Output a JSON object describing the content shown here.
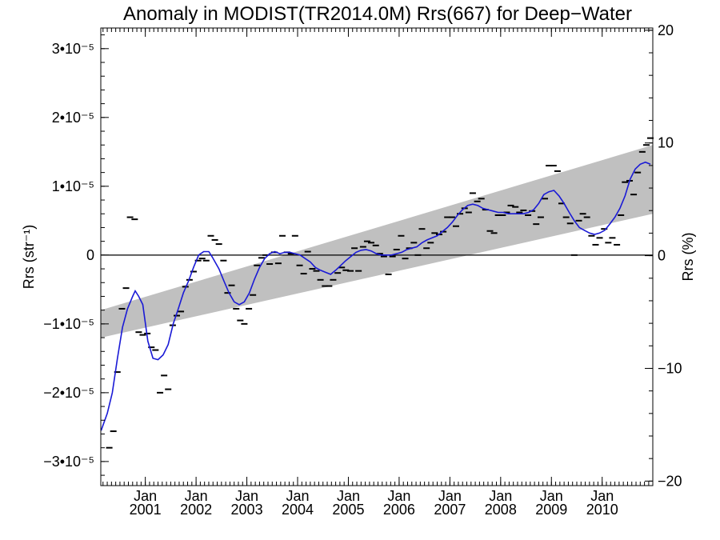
{
  "chart_data": {
    "type": "scatter",
    "title": "Anomaly in MODIST(TR2014.0M) Rrs(667) for Deep−Water",
    "ylabel_left": "Rrs (str⁻¹)",
    "ylabel_right": "Rrs (%)",
    "ylim_left": [
      -3.35e-05,
      3.3e-05
    ],
    "ylim_right": [
      -20.4,
      20.2
    ],
    "y_ticks_left": [
      {
        "value": 3e-05,
        "label": "3•10⁻⁵"
      },
      {
        "value": 2e-05,
        "label": "2•10⁻⁵"
      },
      {
        "value": 1e-05,
        "label": "1•10⁻⁵"
      },
      {
        "value": 0,
        "label": "0"
      },
      {
        "value": -1e-05,
        "label": "−1•10⁻⁵"
      },
      {
        "value": -2e-05,
        "label": "−2•10⁻⁵"
      },
      {
        "value": -3e-05,
        "label": "−3•10⁻⁵"
      }
    ],
    "y_ticks_right": [
      {
        "value": 20,
        "label": "20"
      },
      {
        "value": 10,
        "label": "10"
      },
      {
        "value": 0,
        "label": "0"
      },
      {
        "value": -10,
        "label": "−10"
      },
      {
        "value": -20,
        "label": "−20"
      }
    ],
    "xlim": [
      "2000-02-15",
      "2010-12-31"
    ],
    "x_ticks": [
      {
        "date": "2001-01-01",
        "label_top": "Jan",
        "label_bottom": "2001"
      },
      {
        "date": "2002-01-01",
        "label_top": "Jan",
        "label_bottom": "2002"
      },
      {
        "date": "2003-01-01",
        "label_top": "Jan",
        "label_bottom": "2003"
      },
      {
        "date": "2004-01-01",
        "label_top": "Jan",
        "label_bottom": "2004"
      },
      {
        "date": "2005-01-01",
        "label_top": "Jan",
        "label_bottom": "2005"
      },
      {
        "date": "2006-01-01",
        "label_top": "Jan",
        "label_bottom": "2006"
      },
      {
        "date": "2007-01-01",
        "label_top": "Jan",
        "label_bottom": "2007"
      },
      {
        "date": "2008-01-01",
        "label_top": "Jan",
        "label_bottom": "2008"
      },
      {
        "date": "2009-01-01",
        "label_top": "Jan",
        "label_bottom": "2009"
      },
      {
        "date": "2010-01-01",
        "label_top": "Jan",
        "label_bottom": "2010"
      }
    ],
    "band": {
      "color": "#c0c0c0",
      "start_date": "2000-02-15",
      "start_low": -1.2e-05,
      "start_high": -8e-06,
      "end_date": "2010-12-31",
      "end_low": 6e-06,
      "end_high": 1.6e-05
    },
    "zero_line": true,
    "monthly_points": {
      "color": "#000000",
      "values": [
        [
          2000.29,
          -2.8e-05
        ],
        [
          2000.37,
          -2.56e-05
        ],
        [
          2000.45,
          -1.7e-05
        ],
        [
          2000.54,
          -7.8e-06
        ],
        [
          2000.62,
          -4.8e-06
        ],
        [
          2000.7,
          5.5e-06
        ],
        [
          2000.79,
          5.2e-06
        ],
        [
          2000.87,
          -1.12e-05
        ],
        [
          2000.95,
          -1.16e-05
        ],
        [
          2001.04,
          -1.14e-05
        ],
        [
          2001.12,
          -1.34e-05
        ],
        [
          2001.2,
          -1.38e-05
        ],
        [
          2001.29,
          -2e-05
        ],
        [
          2001.37,
          -1.75e-05
        ],
        [
          2001.45,
          -1.95e-05
        ],
        [
          2001.54,
          -1.02e-05
        ],
        [
          2001.62,
          -8.8e-06
        ],
        [
          2001.7,
          -8.2e-06
        ],
        [
          2001.79,
          -4.6e-06
        ],
        [
          2001.87,
          -3.6e-06
        ],
        [
          2001.95,
          -2.4e-06
        ],
        [
          2002.04,
          -8e-07
        ],
        [
          2002.12,
          -5e-07
        ],
        [
          2002.2,
          -8e-07
        ],
        [
          2002.29,
          2.8e-06
        ],
        [
          2002.37,
          2.2e-06
        ],
        [
          2002.45,
          1.6e-06
        ],
        [
          2002.54,
          -8e-07
        ],
        [
          2002.62,
          -5.5e-06
        ],
        [
          2002.7,
          -4.4e-06
        ],
        [
          2002.79,
          -7.8e-06
        ],
        [
          2002.87,
          -9.5e-06
        ],
        [
          2002.95,
          -1e-05
        ],
        [
          2003.04,
          -7.8e-06
        ],
        [
          2003.12,
          -5.8e-06
        ],
        [
          2003.2,
          -1.5e-06
        ],
        [
          2003.29,
          -4e-07
        ],
        [
          2003.37,
          0.0
        ],
        [
          2003.45,
          -1.3e-06
        ],
        [
          2003.54,
          4e-07
        ],
        [
          2003.62,
          -1.2e-06
        ],
        [
          2003.7,
          2.8e-06
        ],
        [
          2003.79,
          4e-07
        ],
        [
          2003.87,
          2e-07
        ],
        [
          2003.95,
          2.8e-06
        ],
        [
          2004.04,
          -1.5e-06
        ],
        [
          2004.12,
          -2.7e-06
        ],
        [
          2004.2,
          5e-07
        ],
        [
          2004.29,
          -2e-06
        ],
        [
          2004.37,
          -2.3e-06
        ],
        [
          2004.45,
          -3.6e-06
        ],
        [
          2004.54,
          -4.5e-06
        ],
        [
          2004.62,
          -4.5e-06
        ],
        [
          2004.7,
          -3.6e-06
        ],
        [
          2004.79,
          -2.6e-06
        ],
        [
          2004.87,
          -1.8e-06
        ],
        [
          2004.95,
          -2.2e-06
        ],
        [
          2005.04,
          -2.3e-06
        ],
        [
          2005.12,
          1e-06
        ],
        [
          2005.2,
          -2.3e-06
        ],
        [
          2005.29,
          1.2e-06
        ],
        [
          2005.37,
          2e-06
        ],
        [
          2005.45,
          1.8e-06
        ],
        [
          2005.54,
          1.4e-06
        ],
        [
          2005.62,
          2e-07
        ],
        [
          2005.7,
          -2e-07
        ],
        [
          2005.79,
          -2.8e-06
        ],
        [
          2005.87,
          -2e-07
        ],
        [
          2005.95,
          8e-07
        ],
        [
          2006.04,
          2.8e-06
        ],
        [
          2006.12,
          -5e-07
        ],
        [
          2006.2,
          1e-06
        ],
        [
          2006.29,
          1.8e-06
        ],
        [
          2006.37,
          0.0
        ],
        [
          2006.45,
          3.8e-06
        ],
        [
          2006.54,
          1e-06
        ],
        [
          2006.62,
          1.8e-06
        ],
        [
          2006.7,
          3.2e-06
        ],
        [
          2006.79,
          3e-06
        ],
        [
          2006.87,
          3.4e-06
        ],
        [
          2006.95,
          5.5e-06
        ],
        [
          2007.04,
          5.5e-06
        ],
        [
          2007.12,
          4.2e-06
        ],
        [
          2007.2,
          6e-06
        ],
        [
          2007.29,
          6.8e-06
        ],
        [
          2007.37,
          6.2e-06
        ],
        [
          2007.45,
          9e-06
        ],
        [
          2007.54,
          7.8e-06
        ],
        [
          2007.62,
          8.2e-06
        ],
        [
          2007.7,
          6.6e-06
        ],
        [
          2007.79,
          3.5e-06
        ],
        [
          2007.87,
          3.2e-06
        ],
        [
          2007.95,
          5.8e-06
        ],
        [
          2008.04,
          5.8e-06
        ],
        [
          2008.12,
          6.2e-06
        ],
        [
          2008.2,
          7.2e-06
        ],
        [
          2008.29,
          7e-06
        ],
        [
          2008.37,
          6.2e-06
        ],
        [
          2008.45,
          6.5e-06
        ],
        [
          2008.54,
          5.8e-06
        ],
        [
          2008.62,
          6.4e-06
        ],
        [
          2008.7,
          4.5e-06
        ],
        [
          2008.79,
          5.5e-06
        ],
        [
          2008.87,
          8.2e-06
        ],
        [
          2008.95,
          1.3e-05
        ],
        [
          2009.04,
          1.3e-05
        ],
        [
          2009.12,
          1.22e-05
        ],
        [
          2009.2,
          7.5e-06
        ],
        [
          2009.29,
          5.5e-06
        ],
        [
          2009.37,
          4.6e-06
        ],
        [
          2009.45,
          0.0
        ],
        [
          2009.54,
          5e-06
        ],
        [
          2009.62,
          6e-06
        ],
        [
          2009.7,
          5.5e-06
        ],
        [
          2009.79,
          2.8e-06
        ],
        [
          2009.87,
          1.5e-06
        ],
        [
          2009.95,
          2.5e-06
        ],
        [
          2010.04,
          3.8e-06
        ],
        [
          2010.12,
          1.8e-06
        ],
        [
          2010.2,
          2.5e-06
        ],
        [
          2010.29,
          1.5e-06
        ],
        [
          2010.37,
          5.8e-06
        ],
        [
          2010.45,
          1.06e-05
        ],
        [
          2010.54,
          1.08e-05
        ],
        [
          2010.62,
          8.8e-06
        ],
        [
          2010.7,
          1.2e-05
        ],
        [
          2010.79,
          1.5e-05
        ],
        [
          2010.87,
          1.6e-05
        ],
        [
          2010.95,
          1.7e-05
        ]
      ]
    },
    "smoothed_line": {
      "color": "#1a1ad6",
      "values": [
        [
          2000.13,
          -2.55e-05
        ],
        [
          2000.25,
          -2.3e-05
        ],
        [
          2000.35,
          -2e-05
        ],
        [
          2000.45,
          -1.5e-05
        ],
        [
          2000.55,
          -1.05e-05
        ],
        [
          2000.65,
          -7.8e-06
        ],
        [
          2000.75,
          -6e-06
        ],
        [
          2000.8,
          -5.2e-06
        ],
        [
          2000.87,
          -6e-06
        ],
        [
          2000.95,
          -7.2e-06
        ],
        [
          2001.05,
          -1.25e-05
        ],
        [
          2001.15,
          -1.5e-05
        ],
        [
          2001.25,
          -1.52e-05
        ],
        [
          2001.35,
          -1.45e-05
        ],
        [
          2001.45,
          -1.3e-05
        ],
        [
          2001.55,
          -1e-05
        ],
        [
          2001.65,
          -7.8e-06
        ],
        [
          2001.75,
          -5.5e-06
        ],
        [
          2001.85,
          -3.8e-06
        ],
        [
          2001.95,
          -1.8e-06
        ],
        [
          2002.05,
          0.0
        ],
        [
          2002.15,
          5e-07
        ],
        [
          2002.25,
          5e-07
        ],
        [
          2002.32,
          -3e-07
        ],
        [
          2002.45,
          -2e-06
        ],
        [
          2002.55,
          -3.8e-06
        ],
        [
          2002.65,
          -5.5e-06
        ],
        [
          2002.75,
          -6.8e-06
        ],
        [
          2002.85,
          -7.2e-06
        ],
        [
          2002.95,
          -6.8e-06
        ],
        [
          2003.05,
          -5.5e-06
        ],
        [
          2003.15,
          -3.5e-06
        ],
        [
          2003.25,
          -1.8e-06
        ],
        [
          2003.35,
          -5e-07
        ],
        [
          2003.45,
          2e-07
        ],
        [
          2003.55,
          5e-07
        ],
        [
          2003.65,
          2e-07
        ],
        [
          2003.75,
          4e-07
        ],
        [
          2003.85,
          4e-07
        ],
        [
          2003.95,
          2e-07
        ],
        [
          2004.05,
          0.0
        ],
        [
          2004.15,
          -5e-07
        ],
        [
          2004.25,
          -1e-06
        ],
        [
          2004.35,
          -1.8e-06
        ],
        [
          2004.45,
          -2.2e-06
        ],
        [
          2004.55,
          -2.5e-06
        ],
        [
          2004.65,
          -2.8e-06
        ],
        [
          2004.75,
          -2.2e-06
        ],
        [
          2004.85,
          -1.5e-06
        ],
        [
          2004.95,
          -8e-07
        ],
        [
          2005.05,
          -2e-07
        ],
        [
          2005.15,
          4e-07
        ],
        [
          2005.25,
          7e-07
        ],
        [
          2005.35,
          8e-07
        ],
        [
          2005.45,
          6e-07
        ],
        [
          2005.55,
          2e-07
        ],
        [
          2005.65,
          0.0
        ],
        [
          2005.75,
          0.0
        ],
        [
          2005.85,
          0.0
        ],
        [
          2005.95,
          2e-07
        ],
        [
          2006.05,
          4e-07
        ],
        [
          2006.15,
          8e-07
        ],
        [
          2006.25,
          1e-06
        ],
        [
          2006.35,
          1.2e-06
        ],
        [
          2006.45,
          1.8e-06
        ],
        [
          2006.55,
          2.2e-06
        ],
        [
          2006.65,
          2.5e-06
        ],
        [
          2006.75,
          2.8e-06
        ],
        [
          2006.85,
          3.4e-06
        ],
        [
          2006.95,
          4e-06
        ],
        [
          2007.05,
          4.8e-06
        ],
        [
          2007.15,
          5.8e-06
        ],
        [
          2007.25,
          6.6e-06
        ],
        [
          2007.35,
          7.2e-06
        ],
        [
          2007.45,
          7.4e-06
        ],
        [
          2007.55,
          7.2e-06
        ],
        [
          2007.65,
          6.8e-06
        ],
        [
          2007.75,
          6.6e-06
        ],
        [
          2007.85,
          6.4e-06
        ],
        [
          2007.95,
          6.2e-06
        ],
        [
          2008.05,
          6.2e-06
        ],
        [
          2008.15,
          6e-06
        ],
        [
          2008.25,
          6e-06
        ],
        [
          2008.35,
          6e-06
        ],
        [
          2008.45,
          6e-06
        ],
        [
          2008.55,
          6.2e-06
        ],
        [
          2008.65,
          6.6e-06
        ],
        [
          2008.75,
          7.5e-06
        ],
        [
          2008.85,
          8.8e-06
        ],
        [
          2008.95,
          9.2e-06
        ],
        [
          2009.05,
          9.4e-06
        ],
        [
          2009.15,
          8.6e-06
        ],
        [
          2009.25,
          7.5e-06
        ],
        [
          2009.35,
          6.2e-06
        ],
        [
          2009.45,
          5e-06
        ],
        [
          2009.55,
          4e-06
        ],
        [
          2009.65,
          3.6e-06
        ],
        [
          2009.75,
          3.2e-06
        ],
        [
          2009.85,
          3e-06
        ],
        [
          2009.95,
          3.2e-06
        ],
        [
          2010.05,
          3.6e-06
        ],
        [
          2010.15,
          4.5e-06
        ],
        [
          2010.25,
          5.5e-06
        ],
        [
          2010.35,
          6.8e-06
        ],
        [
          2010.45,
          8.6e-06
        ],
        [
          2010.55,
          1.1e-05
        ],
        [
          2010.65,
          1.25e-05
        ],
        [
          2010.75,
          1.32e-05
        ],
        [
          2010.85,
          1.35e-05
        ],
        [
          2010.95,
          1.32e-05
        ]
      ]
    }
  }
}
